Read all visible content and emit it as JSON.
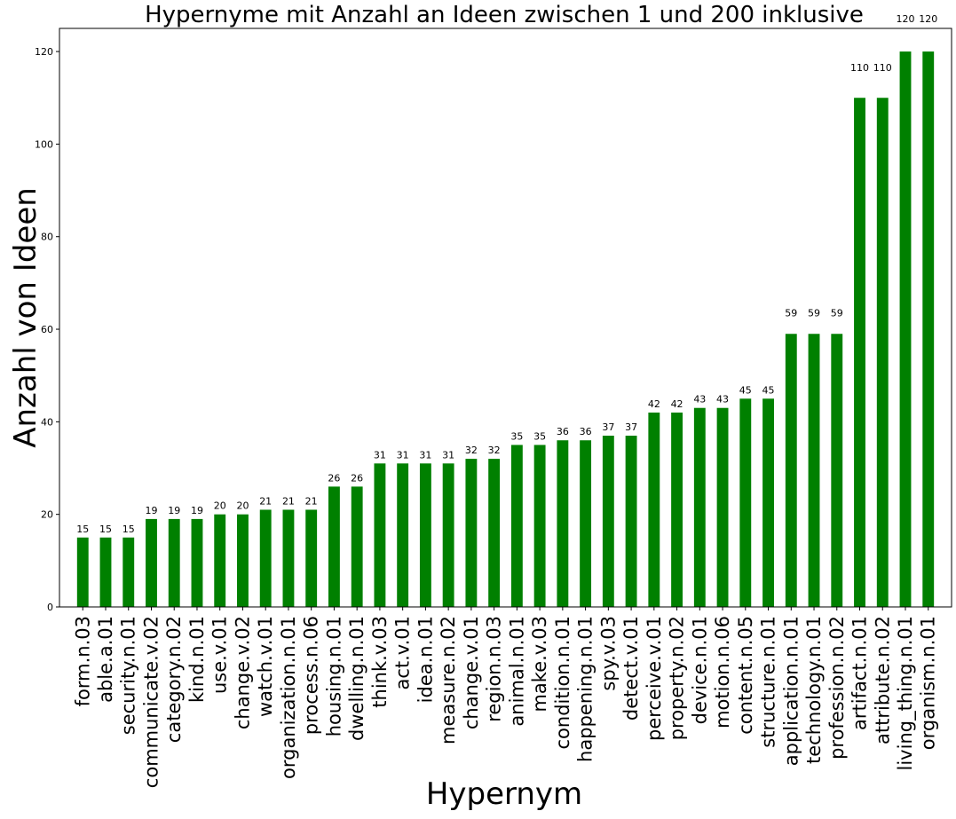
{
  "chart_data": {
    "type": "bar",
    "title": "Hypernyme mit Anzahl an Ideen zwischen 1 und 200 inklusive",
    "xlabel": "Hypernym",
    "ylabel": "Anzahl von Ideen",
    "ylim": [
      0,
      125
    ],
    "yticks": [
      0,
      20,
      40,
      60,
      80,
      100,
      120
    ],
    "grid": false,
    "bar_color": "#008000",
    "categories": [
      "form.n.03",
      "able.a.01",
      "security.n.01",
      "communicate.v.02",
      "category.n.02",
      "kind.n.01",
      "use.v.01",
      "change.v.02",
      "watch.v.01",
      "organization.n.01",
      "process.n.06",
      "housing.n.01",
      "dwelling.n.01",
      "think.v.03",
      "act.v.01",
      "idea.n.01",
      "measure.n.02",
      "change.v.01",
      "region.n.03",
      "animal.n.01",
      "make.v.03",
      "condition.n.01",
      "happening.n.01",
      "spy.v.03",
      "detect.v.01",
      "perceive.v.01",
      "property.n.02",
      "device.n.01",
      "motion.n.06",
      "content.n.05",
      "structure.n.01",
      "application.n.01",
      "technology.n.01",
      "profession.n.02",
      "artifact.n.01",
      "attribute.n.02",
      "living_thing.n.01",
      "organism.n.01"
    ],
    "values": [
      15,
      15,
      15,
      19,
      19,
      19,
      20,
      20,
      21,
      21,
      21,
      26,
      26,
      31,
      31,
      31,
      31,
      32,
      32,
      35,
      35,
      36,
      36,
      37,
      37,
      42,
      42,
      43,
      43,
      45,
      45,
      59,
      59,
      59,
      110,
      110,
      120,
      120
    ],
    "data_labels": [
      "15",
      "15",
      "15",
      "19",
      "19",
      "19",
      "20",
      "20",
      "21",
      "21",
      "21",
      "26",
      "26",
      "31",
      "31",
      "31",
      "31",
      "32",
      "32",
      "35",
      "35",
      "36",
      "36",
      "37",
      "37",
      "42",
      "42",
      "43",
      "43",
      "45",
      "45",
      "59",
      "59",
      "59",
      "110",
      "110",
      "120",
      "120"
    ]
  }
}
